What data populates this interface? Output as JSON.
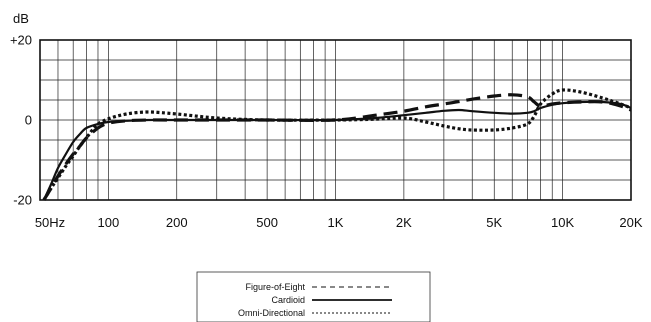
{
  "chart_data": {
    "type": "line",
    "ylabel": "dB",
    "xlabel": "",
    "x_scale": "log",
    "xlim": [
      50,
      20000
    ],
    "ylim": [
      -20,
      20
    ],
    "grid": true,
    "y_ticks": [
      {
        "value": 20,
        "label": "+20"
      },
      {
        "value": 0,
        "label": "0"
      },
      {
        "value": -20,
        "label": "-20"
      }
    ],
    "x_ticks": [
      {
        "value": 50,
        "label": "50Hz"
      },
      {
        "value": 100,
        "label": "100"
      },
      {
        "value": 200,
        "label": "200"
      },
      {
        "value": 500,
        "label": "500"
      },
      {
        "value": 1000,
        "label": "1K"
      },
      {
        "value": 2000,
        "label": "2K"
      },
      {
        "value": 5000,
        "label": "5K"
      },
      {
        "value": 10000,
        "label": "10K"
      },
      {
        "value": 20000,
        "label": "20K"
      }
    ],
    "legend_position": "bottom-center",
    "series": [
      {
        "name": "Figure-of-Eight",
        "style": "dashed",
        "x": [
          52,
          56,
          60,
          65,
          70,
          75,
          80,
          90,
          100,
          120,
          150,
          200,
          300,
          500,
          1000,
          1500,
          2000,
          2500,
          3000,
          3500,
          4000,
          5000,
          6000,
          7000,
          7500,
          8000,
          9000,
          10000,
          12000,
          15000,
          18000,
          20000
        ],
        "y": [
          -20,
          -17,
          -14,
          -11,
          -8.5,
          -6.5,
          -4.5,
          -2,
          -0.8,
          -0.2,
          0,
          0,
          0,
          0,
          0,
          1.2,
          2.2,
          3.3,
          4,
          4.6,
          5.2,
          6,
          6.3,
          5.8,
          4.5,
          3.5,
          4,
          4.3,
          4.5,
          4.5,
          3.5,
          2.5
        ]
      },
      {
        "name": "Cardioid",
        "style": "solid",
        "x": [
          52,
          56,
          60,
          65,
          70,
          75,
          80,
          90,
          100,
          120,
          150,
          200,
          300,
          500,
          1000,
          1500,
          2000,
          2500,
          3000,
          3500,
          4000,
          5000,
          6000,
          7000,
          7500,
          8000,
          9000,
          10000,
          12000,
          15000,
          18000,
          20000
        ],
        "y": [
          -20,
          -16,
          -12,
          -8.5,
          -5.5,
          -3.5,
          -2,
          -1,
          -0.5,
          -0.2,
          0,
          0,
          0,
          0,
          0,
          0.5,
          1.2,
          1.8,
          2.3,
          2.5,
          2.2,
          1.8,
          1.6,
          1.8,
          2.2,
          3,
          3.8,
          4.2,
          4.5,
          4.5,
          4,
          3
        ]
      },
      {
        "name": "Omni-Directional",
        "style": "dotted",
        "x": [
          52,
          56,
          60,
          65,
          70,
          75,
          80,
          85,
          90,
          100,
          120,
          150,
          200,
          300,
          500,
          1000,
          1500,
          2000,
          2500,
          3000,
          3500,
          4000,
          5000,
          6000,
          7000,
          7500,
          8000,
          9000,
          10000,
          12000,
          15000,
          18000,
          20000
        ],
        "y": [
          -20,
          -17,
          -14.5,
          -11.5,
          -9,
          -6.5,
          -4.5,
          -2.5,
          -1,
          0.3,
          1.5,
          2,
          1.5,
          0.5,
          0,
          0,
          0.2,
          0.5,
          -0.5,
          -1.5,
          -2.2,
          -2.5,
          -2.5,
          -2,
          -1,
          1,
          4,
          6.5,
          7.5,
          7,
          5.5,
          4,
          3
        ]
      }
    ]
  }
}
